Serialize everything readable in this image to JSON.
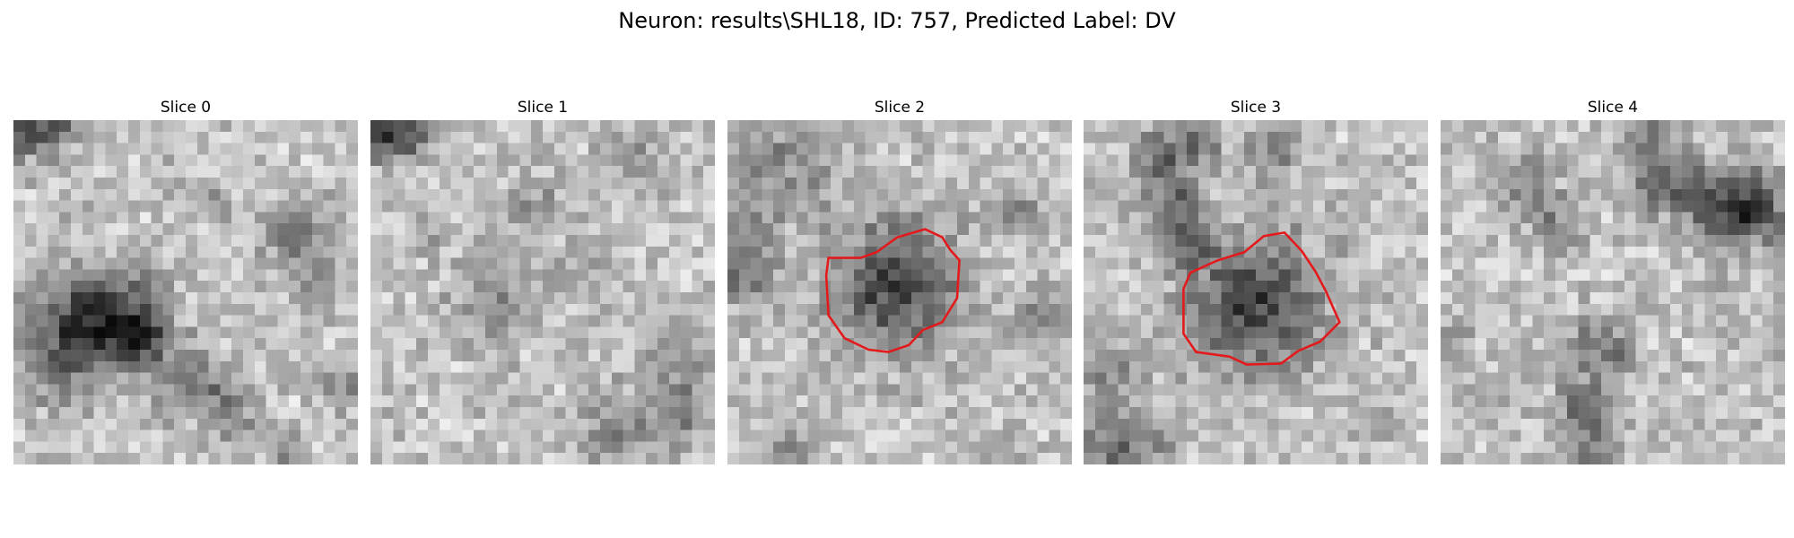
{
  "figure": {
    "title": "Neuron: results\\SHL18, ID: 757, Predicted Label: DV",
    "outline_color": "#e31a1c"
  },
  "slices": [
    {
      "title": "Slice 0",
      "seed": 11,
      "has_outline": false
    },
    {
      "title": "Slice 1",
      "seed": 23,
      "has_outline": false
    },
    {
      "title": "Slice 2",
      "seed": 37,
      "has_outline": true
    },
    {
      "title": "Slice 3",
      "seed": 51,
      "has_outline": true
    },
    {
      "title": "Slice 4",
      "seed": 67,
      "has_outline": false
    }
  ]
}
